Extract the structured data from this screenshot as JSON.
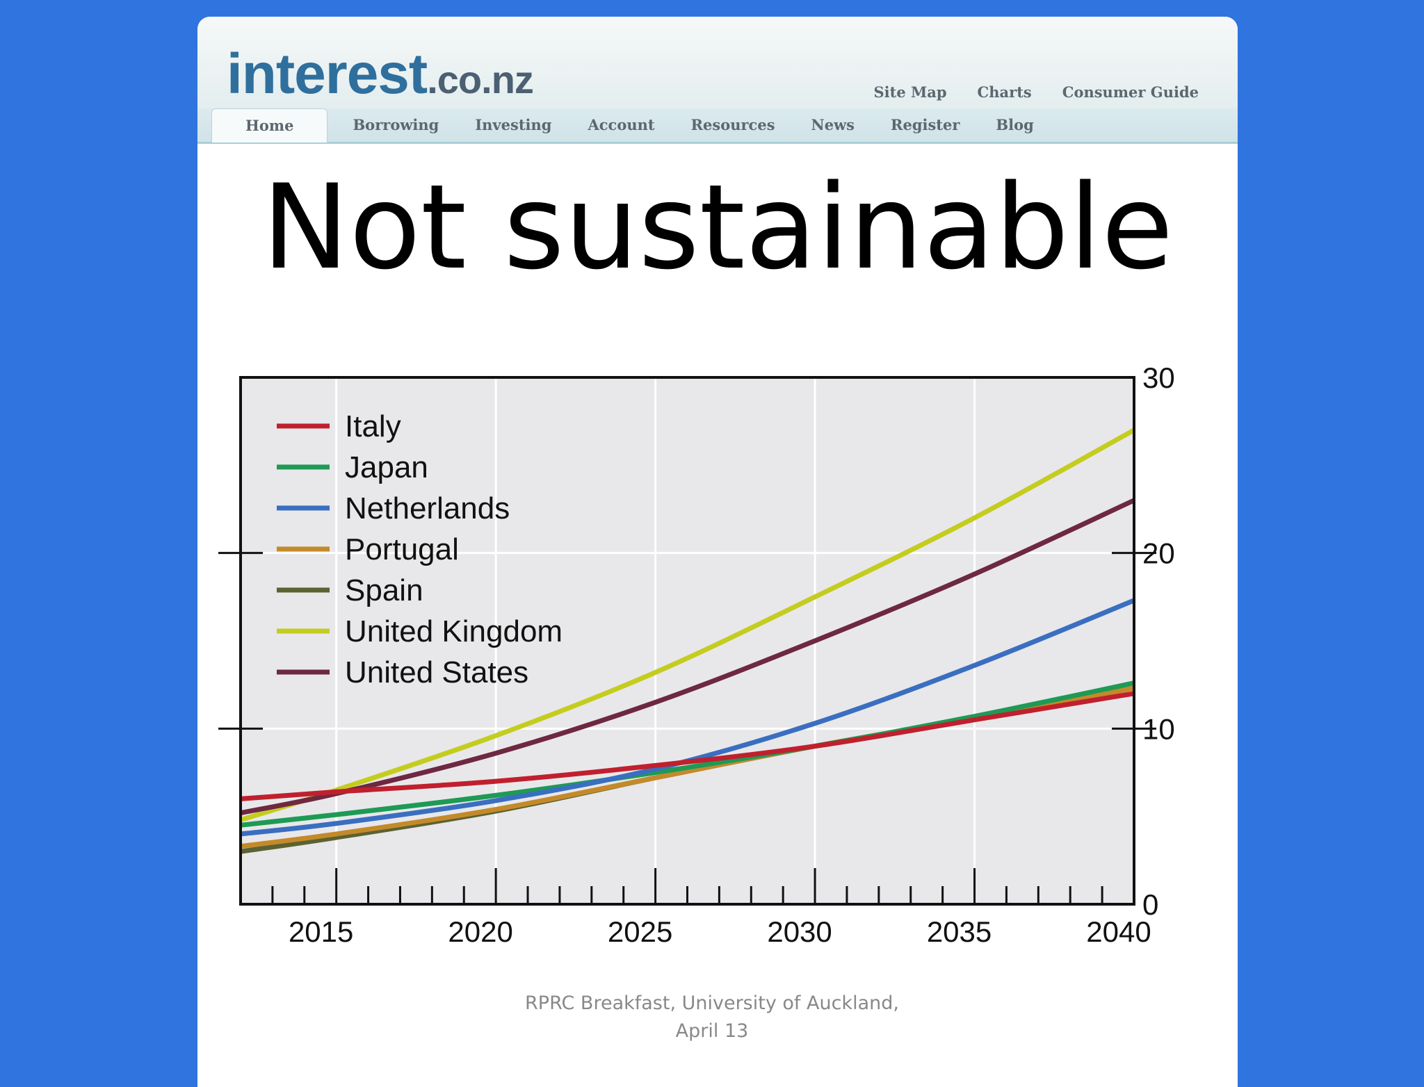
{
  "site": {
    "logo_main": "interest",
    "logo_tld": ".co.nz",
    "util_links": [
      "Site Map",
      "Charts",
      "Consumer Guide"
    ],
    "nav_items": [
      "Home",
      "Borrowing",
      "Investing",
      "Account",
      "Resources",
      "News",
      "Register",
      "Blog"
    ],
    "active_nav": "Home"
  },
  "slide": {
    "title": "Not sustainable",
    "footer_line1": "RPRC Breakfast, University of Auckland,",
    "footer_line2": "April 13"
  },
  "colors": {
    "page_background": "#2f74df",
    "plot_background": "#e8e8ea"
  },
  "chart_data": {
    "type": "line",
    "title": "",
    "xlabel": "",
    "ylabel": "",
    "xlim": [
      2012,
      2040
    ],
    "ylim": [
      0,
      30
    ],
    "x_ticks": [
      2015,
      2020,
      2025,
      2030,
      2035,
      2040
    ],
    "y_ticks": [
      0,
      10,
      20,
      30
    ],
    "y_axis_side": "right",
    "grid": true,
    "legend_position": "top-left",
    "series": [
      {
        "name": "Italy",
        "color": "#c0202e",
        "x": [
          2012,
          2015,
          2020,
          2025,
          2030,
          2035,
          2040
        ],
        "y": [
          6.0,
          6.4,
          7.0,
          7.9,
          9.0,
          10.5,
          12.0
        ]
      },
      {
        "name": "Japan",
        "color": "#1e9a55",
        "x": [
          2012,
          2015,
          2020,
          2025,
          2030,
          2035,
          2040
        ],
        "y": [
          4.5,
          5.1,
          6.2,
          7.5,
          9.0,
          10.7,
          12.6
        ]
      },
      {
        "name": "Netherlands",
        "color": "#3a6ec0",
        "x": [
          2012,
          2015,
          2020,
          2025,
          2030,
          2035,
          2040
        ],
        "y": [
          4.0,
          4.6,
          5.9,
          7.7,
          10.3,
          13.6,
          17.3
        ]
      },
      {
        "name": "Portugal",
        "color": "#c48a2a",
        "x": [
          2012,
          2015,
          2020,
          2025,
          2030,
          2035,
          2040
        ],
        "y": [
          3.3,
          4.0,
          5.4,
          7.2,
          9.0,
          10.6,
          12.3
        ]
      },
      {
        "name": "Spain",
        "color": "#5b6232",
        "x": [
          2012,
          2015,
          2020,
          2025,
          2030,
          2035,
          2040
        ],
        "y": [
          3.0,
          3.8,
          5.3,
          7.2,
          9.0,
          10.6,
          12.3
        ]
      },
      {
        "name": "United Kingdom",
        "color": "#c4cd1f",
        "x": [
          2012,
          2015,
          2020,
          2025,
          2030,
          2035,
          2040
        ],
        "y": [
          4.8,
          6.5,
          9.6,
          13.2,
          17.5,
          22.0,
          27.0
        ]
      },
      {
        "name": "United States",
        "color": "#6e2840",
        "x": [
          2012,
          2015,
          2020,
          2025,
          2030,
          2035,
          2040
        ],
        "y": [
          5.2,
          6.3,
          8.6,
          11.5,
          15.0,
          18.8,
          23.0
        ]
      }
    ]
  }
}
